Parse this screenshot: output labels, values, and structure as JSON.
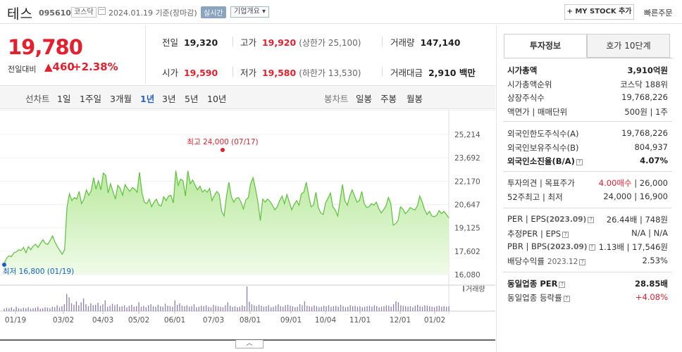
{
  "header": {
    "name": "테스",
    "code": "095610",
    "market": "코스닥",
    "date": "2024.01.19  기준(장마감)",
    "realtime": "실시간",
    "company_info": "기업개요 ▾",
    "mystock": "+ MY STOCK 추가",
    "quick_order": "빠른주문"
  },
  "price": {
    "current": "19,780",
    "change_label": "전일대비",
    "change_amount": "▲460",
    "change_percent": "+2.38%"
  },
  "quote": {
    "prev_close": {
      "label": "전일",
      "value": "19,320"
    },
    "high": {
      "label": "고가",
      "value": "19,920",
      "sub": "(상한가 25,100)"
    },
    "volume": {
      "label": "거래량",
      "value": "147,140"
    },
    "open": {
      "label": "시가",
      "value": "19,590"
    },
    "low": {
      "label": "저가",
      "value": "19,580",
      "sub": "(하한가 13,530)"
    },
    "amount": {
      "label": "거래대금",
      "value": "2,910 백만"
    }
  },
  "tabs": {
    "line_label": "선차트",
    "periods": [
      "1일",
      "1주일",
      "3개월",
      "1년",
      "3년",
      "5년",
      "10년"
    ],
    "active_period": "1년",
    "candle_label": "봉차트",
    "candles": [
      "일봉",
      "주봉",
      "월봉"
    ]
  },
  "right_tabs": {
    "invest": "투자정보",
    "hoga": "호가 10단계"
  },
  "invest_info": {
    "group1": [
      {
        "label": "시가총액",
        "value": "3,910억원",
        "bold": true
      },
      {
        "label": "시가총액순위",
        "value": "코스닥 188위"
      },
      {
        "label": "상장주식수",
        "value": "19,768,226"
      },
      {
        "label": "액면가 | 매매단위",
        "value": "500원 | 1주"
      }
    ],
    "group2": [
      {
        "label": "외국인한도주식수(A)",
        "value": "19,768,226"
      },
      {
        "label": "외국인보유주식수(B)",
        "value": "804,937"
      },
      {
        "label": "외국인소진율(B/A)",
        "value": "4.07%",
        "bold": true
      }
    ],
    "group3": [
      {
        "label": "투자의견 | 목표주가",
        "value_red": "4.00매수",
        "value": " | 26,000"
      },
      {
        "label": "52주최고 | 최저",
        "value": "24,000 | 16,900"
      }
    ],
    "group4": [
      {
        "label": "PER | EPS",
        "sub": "(2023.09)",
        "value": "26.44배 | 748원"
      },
      {
        "label": "추정PER | EPS",
        "value": "N/A | N/A"
      },
      {
        "label": "PBR | BPS",
        "sub": "(2023.09)",
        "value": "1.13배 | 17,546원"
      },
      {
        "label": "배당수익률",
        "sub": "2023.12",
        "value": "2.53%"
      }
    ],
    "group5": [
      {
        "label": "동일업종 PER",
        "value": "28.85배",
        "bold": true
      },
      {
        "label": "동일업종 등락률",
        "value": "+4.08%",
        "red": true
      }
    ]
  },
  "colors": {
    "up": "#e5202e",
    "down": "#1a5fc7",
    "line": "#5cc23a",
    "fill": "#cfefbd"
  },
  "chart_data": {
    "type": "area",
    "y_ticks": [
      "25,214",
      "23,692",
      "22,170",
      "20,647",
      "19,125",
      "17,602",
      "16,080"
    ],
    "ylim": [
      16080,
      25214
    ],
    "x_ticks": [
      "01/19",
      "03/02",
      "04/03",
      "05/02",
      "06/01",
      "07/03",
      "08/01",
      "09/01",
      "10/04",
      "11/01",
      "12/01",
      "01/02"
    ],
    "high_label": "최고 24,000 (07/17)",
    "low_label": "최저 16,800 (01/19)",
    "volume_label": "거래량",
    "series": [
      {
        "values": [
          16800,
          17150,
          17300,
          17250,
          17500,
          17550,
          17700,
          17650,
          17850,
          17500,
          17900,
          17700,
          17950,
          18050,
          17850,
          18100,
          18350,
          18100,
          18050,
          18300,
          18600,
          18200,
          17900,
          17650,
          17400,
          17700,
          20500,
          21350,
          20900,
          21100,
          21000,
          21500,
          20700,
          21000,
          21600,
          21250,
          21550,
          22400,
          21650,
          22200,
          21600,
          22700,
          22550,
          21400,
          22000,
          21500,
          21000,
          21900,
          21700,
          21250,
          21950,
          21700,
          21500,
          21750,
          21650,
          21450,
          22750,
          21400,
          20800,
          20700,
          21000,
          20500,
          20800,
          21000,
          20600,
          20550,
          21150,
          20900,
          21200,
          21250,
          20750,
          22850,
          21900,
          22300,
          22200,
          21200,
          22850,
          22000,
          22250,
          21900,
          21600,
          21850,
          21450,
          21600,
          21450,
          21700,
          20900,
          21250,
          21500,
          21300,
          20200,
          19900,
          21200,
          22100,
          21150,
          20800,
          21050,
          21100,
          20800,
          20350,
          20950,
          21100,
          22000,
          22400,
          21650,
          20800,
          19600,
          21000,
          20800,
          21000,
          20850,
          20600,
          20300,
          20500,
          20900,
          21200,
          20700,
          21300,
          20800,
          20300,
          20650,
          20900,
          20600,
          21350,
          21450,
          22100,
          21250,
          20500,
          20600,
          21450,
          20450,
          20100,
          20000,
          20750,
          21050,
          21400,
          20500,
          20300,
          19900,
          20900,
          21950,
          20900,
          20600,
          21200,
          21600,
          21200,
          20800,
          20900,
          21500,
          20700,
          20450,
          20500,
          20700,
          20600,
          20800,
          20400,
          20100,
          20300,
          20550,
          21100,
          20700,
          19300,
          19400,
          19600,
          20500,
          20350,
          20050,
          20200,
          20450,
          20350,
          20300,
          20550,
          21200,
          20800,
          20300,
          20000,
          20200,
          19900,
          19850,
          19950,
          20250,
          20050,
          20200,
          19990,
          19780
        ]
      },
      {
        "name": "거래량",
        "values": [
          5,
          7,
          6,
          8,
          4,
          9,
          6,
          5,
          7,
          6,
          8,
          5,
          6,
          7,
          9,
          5,
          6,
          8,
          7,
          6,
          9,
          8,
          12,
          8,
          10,
          14,
          35,
          28,
          16,
          13,
          20,
          12,
          18,
          26,
          14,
          10,
          16,
          12,
          13,
          17,
          11,
          14,
          22,
          9,
          11,
          15,
          12,
          14,
          9,
          10,
          12,
          8,
          11,
          13,
          9,
          10,
          18,
          9,
          11,
          8,
          12,
          14,
          10,
          9,
          13,
          10,
          9,
          15,
          11,
          10,
          9,
          22,
          13,
          16,
          11,
          10,
          12,
          9,
          10,
          14,
          8,
          9,
          11,
          10,
          12,
          9,
          8,
          13,
          11,
          10,
          9,
          8,
          12,
          18,
          11,
          9,
          10,
          8,
          9,
          12,
          10,
          50,
          19,
          14,
          12,
          10,
          13,
          11,
          9,
          10,
          12,
          8,
          9,
          11,
          14,
          10,
          9,
          12,
          13,
          11,
          10,
          8,
          9,
          14,
          12,
          20,
          11,
          10,
          9,
          12,
          10,
          8,
          9,
          11,
          10,
          12,
          9,
          10,
          11,
          9,
          13,
          10,
          8,
          9,
          12,
          10,
          11,
          9,
          10,
          8,
          9,
          10,
          11,
          9,
          12,
          10,
          8,
          9,
          10,
          12,
          11,
          9,
          14,
          20,
          18,
          12,
          11,
          10,
          9,
          10,
          8,
          11,
          13,
          10,
          9,
          12,
          11,
          10,
          9,
          8,
          10,
          11,
          9,
          10,
          9,
          10
        ]
      }
    ]
  }
}
